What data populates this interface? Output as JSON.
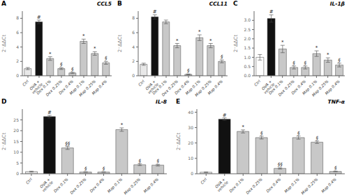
{
  "chart_data": [
    {
      "type": "bar",
      "label": "A",
      "title": "CCL5",
      "ylabel": "2⁻ΔΔCt",
      "ylim": [
        0,
        9
      ],
      "yticks": [
        0,
        2,
        4,
        6,
        8
      ],
      "grid": false,
      "categories": [
        "Ctrl",
        "OVA +\nvehicle",
        "Dex 0.1%",
        "Dex 0.25%",
        "Dex 0.4%",
        "Map 0.1%",
        "Map 0.25%",
        "Map 0.4%"
      ],
      "values": [
        1.0,
        7.5,
        2.4,
        1.0,
        0.4,
        4.8,
        3.1,
        1.8
      ],
      "errors": [
        0.15,
        0.25,
        0.25,
        0.12,
        0.08,
        0.3,
        0.25,
        0.2
      ],
      "colors": [
        "#e8e8e8",
        "#111111",
        "#c8c8c8",
        "#c8c8c8",
        "#c8c8c8",
        "#c8c8c8",
        "#c8c8c8",
        "#c8c8c8"
      ],
      "annotations": [
        null,
        "#",
        "*",
        "§",
        "§",
        "*",
        "*",
        "§"
      ]
    },
    {
      "type": "bar",
      "label": "B",
      "title": "CCL11",
      "ylabel": "2⁻ΔΔCt",
      "ylim": [
        0,
        9
      ],
      "yticks": [
        0,
        2,
        4,
        6,
        8
      ],
      "grid": false,
      "categories": [
        "Ctrl",
        "OVA +\nvehicle",
        "Dex 0.1%",
        "Dex 0.25%",
        "Dex 0.4%",
        "Map 0.1%",
        "Map 0.25%",
        "Map 0.4%"
      ],
      "values": [
        1.6,
        8.2,
        7.5,
        4.2,
        0.2,
        5.3,
        4.2,
        2.0
      ],
      "errors": [
        0.15,
        0.3,
        0.25,
        0.3,
        0.05,
        0.4,
        0.3,
        0.2
      ],
      "colors": [
        "#e8e8e8",
        "#111111",
        "#c8c8c8",
        "#c8c8c8",
        "#c8c8c8",
        "#c8c8c8",
        "#c8c8c8",
        "#c8c8c8"
      ],
      "annotations": [
        null,
        "#",
        null,
        "*",
        "§",
        "*",
        "*",
        "§"
      ]
    },
    {
      "type": "bar",
      "label": "C",
      "title": "IL-1β",
      "ylabel": "2⁻ΔΔCt",
      "ylim": [
        0,
        3.5
      ],
      "yticks": [
        {
          "value": 0,
          "label": "0.0"
        },
        0.5,
        {
          "value": 1,
          "label": "1.0"
        },
        1.5,
        {
          "value": 2,
          "label": "2.0"
        },
        2.5,
        {
          "value": 3,
          "label": "3.0"
        }
      ],
      "grid": false,
      "categories": [
        "Ctrl",
        "OVA +\nvehicle",
        "Dex 0.1%",
        "Dex 0.25%",
        "Dex 0.4%",
        "Map 0.1%",
        "Map 0.25%",
        "Map 0.4%"
      ],
      "values": [
        1.0,
        3.1,
        1.45,
        0.45,
        0.45,
        1.2,
        0.85,
        0.58
      ],
      "errors": [
        0.15,
        0.2,
        0.2,
        0.08,
        0.08,
        0.15,
        0.12,
        0.1
      ],
      "colors": [
        "#ffffff",
        "#111111",
        "#c8c8c8",
        "#c8c8c8",
        "#c8c8c8",
        "#c8c8c8",
        "#c8c8c8",
        "#c8c8c8"
      ],
      "annotations": [
        null,
        "#",
        "*",
        "§",
        "§",
        "*",
        "*",
        "§"
      ]
    },
    {
      "type": "bar",
      "label": "D",
      "title": "IL-8",
      "ylabel": "2⁻ΔΔCt",
      "ylim": [
        0,
        30
      ],
      "yticks": [
        0,
        5,
        10,
        15,
        20,
        25
      ],
      "grid": false,
      "categories": [
        "Ctrl",
        "OVA +\nvehicle",
        "Dex 0.1%",
        "Dex 0.25%",
        "Dex 0.4%",
        "Map 0.1%",
        "Map 0.25%",
        "Map 0.4%"
      ],
      "values": [
        1.0,
        26.5,
        12.0,
        0.8,
        0.8,
        20.5,
        4.2,
        4.0
      ],
      "errors": [
        0.2,
        0.6,
        0.7,
        0.1,
        0.1,
        0.8,
        0.4,
        0.4
      ],
      "colors": [
        "#e8e8e8",
        "#111111",
        "#c8c8c8",
        "#c8c8c8",
        "#c8c8c8",
        "#c8c8c8",
        "#c8c8c8",
        "#c8c8c8"
      ],
      "annotations": [
        null,
        "#",
        "§§",
        "§",
        "§",
        "*",
        "§",
        "§"
      ]
    },
    {
      "type": "bar",
      "label": "E",
      "title": "TNF-α",
      "ylabel": "2⁻ΔΔCt",
      "ylim": [
        0,
        42
      ],
      "yticks": [
        0,
        10,
        20,
        30,
        40
      ],
      "grid": false,
      "categories": [
        "Ctrl",
        "OVA +\nvehicle",
        "Dex 0.1%",
        "Dex 0.25%",
        "Dex 0.4%",
        "Map 0.1%",
        "Map 0.25%",
        "Map 0.4%"
      ],
      "values": [
        1.0,
        35.5,
        27.5,
        23.5,
        3.5,
        23.5,
        20.5,
        1.5
      ],
      "errors": [
        0.2,
        0.8,
        1.0,
        0.9,
        0.4,
        1.0,
        0.8,
        0.2
      ],
      "colors": [
        "#e8e8e8",
        "#111111",
        "#c8c8c8",
        "#c8c8c8",
        "#c8c8c8",
        "#c8c8c8",
        "#c8c8c8",
        "#c8c8c8"
      ],
      "annotations": [
        null,
        "#",
        "*",
        "§",
        "§§",
        "§",
        "§",
        "§"
      ]
    }
  ]
}
